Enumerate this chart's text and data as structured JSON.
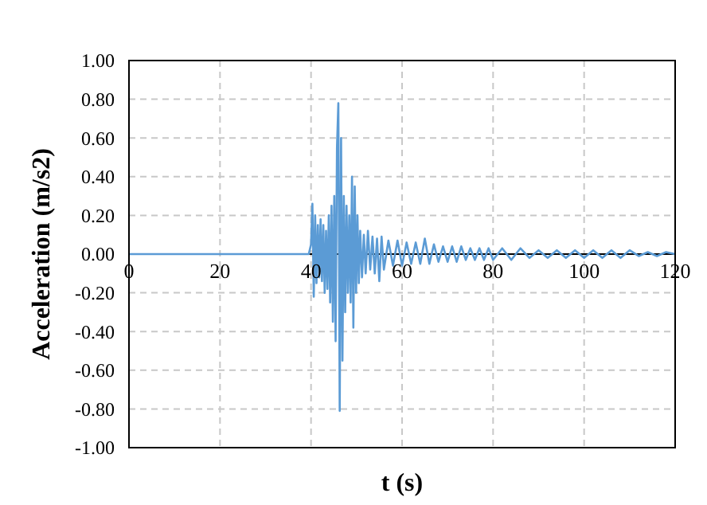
{
  "chart_data": {
    "type": "line",
    "xlabel": "t (s)",
    "ylabel": "Acceleration (m/s2)",
    "xlim": [
      0,
      120
    ],
    "xticks": [
      0,
      20,
      40,
      60,
      80,
      100,
      120
    ],
    "ylim": [
      -1,
      1
    ],
    "yticks": [
      {
        "value": -1,
        "label": "-1.00"
      },
      {
        "value": -0.8,
        "label": "-0.80"
      },
      {
        "value": -0.6,
        "label": "-0.60"
      },
      {
        "value": -0.4,
        "label": "-0.40"
      },
      {
        "value": -0.2,
        "label": "-0.20"
      },
      {
        "value": 0,
        "label": "0.00"
      },
      {
        "value": 0.2,
        "label": "0.20"
      },
      {
        "value": 0.4,
        "label": "0.40"
      },
      {
        "value": 0.6,
        "label": "0.60"
      },
      {
        "value": 0.8,
        "label": "0.80"
      },
      {
        "value": 1,
        "label": "1.00"
      }
    ],
    "grid": true,
    "series": [
      {
        "color": "#5b9bd5",
        "x": [
          0,
          39.5,
          40,
          40.3,
          40.6,
          40.9,
          41.2,
          41.5,
          41.8,
          42.1,
          42.4,
          42.7,
          43,
          43.3,
          43.6,
          43.9,
          44.2,
          44.5,
          44.8,
          45.1,
          45.4,
          45.7,
          46,
          46.3,
          46.6,
          46.9,
          47.2,
          47.5,
          47.8,
          48.1,
          48.4,
          48.7,
          49,
          49.3,
          49.6,
          49.9,
          50.2,
          50.5,
          50.8,
          51.2,
          51.6,
          52,
          52.5,
          53,
          53.5,
          54,
          54.5,
          55,
          55.5,
          56,
          57,
          58,
          59,
          60,
          61,
          62,
          63,
          64,
          65,
          66,
          67,
          68,
          69,
          70,
          71,
          72,
          73,
          74,
          75,
          76,
          77,
          78,
          79,
          80,
          82,
          84,
          86,
          88,
          90,
          92,
          94,
          96,
          98,
          100,
          102,
          104,
          106,
          108,
          110,
          112,
          114,
          116,
          118,
          120
        ],
        "values": [
          0,
          0,
          0.05,
          0.26,
          -0.22,
          0.2,
          -0.15,
          0.15,
          -0.12,
          0.18,
          -0.14,
          0.15,
          -0.2,
          0.12,
          -0.18,
          0.2,
          -0.25,
          0.25,
          -0.35,
          0.3,
          -0.45,
          0.55,
          0.78,
          -0.81,
          0.6,
          -0.55,
          0.3,
          -0.3,
          0.25,
          -0.2,
          0.2,
          -0.25,
          0.4,
          -0.38,
          0.35,
          -0.2,
          0.2,
          -0.15,
          0.12,
          -0.12,
          0.1,
          -0.1,
          0.12,
          -0.08,
          0.09,
          -0.1,
          0.08,
          -0.14,
          0.09,
          -0.08,
          0.07,
          -0.06,
          0.07,
          -0.06,
          0.06,
          -0.05,
          0.06,
          -0.05,
          0.08,
          -0.05,
          0.05,
          -0.04,
          0.04,
          -0.04,
          0.04,
          -0.04,
          0.04,
          -0.03,
          0.03,
          -0.03,
          0.03,
          -0.03,
          0.03,
          -0.03,
          0.03,
          -0.03,
          0.03,
          -0.02,
          0.02,
          -0.02,
          0.02,
          -0.02,
          0.02,
          -0.02,
          0.02,
          -0.02,
          0.02,
          -0.02,
          0.02,
          -0.01,
          0.01,
          -0.01,
          0.01,
          0
        ]
      }
    ]
  }
}
